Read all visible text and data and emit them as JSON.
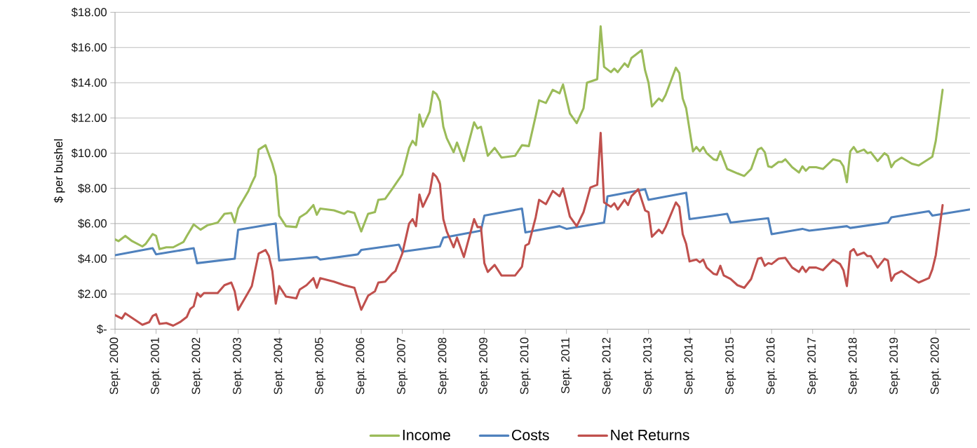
{
  "chart_data": {
    "type": "line",
    "ylabel": "$ per bushel",
    "xlim": [
      "2000-09",
      "2021-07"
    ],
    "xticks": [
      {
        "value": "2000-09",
        "label": "Sept. 2000"
      },
      {
        "value": "2001-09",
        "label": "Sept. 2001"
      },
      {
        "value": "2002-09",
        "label": "Sept. 2002"
      },
      {
        "value": "2003-09",
        "label": "Sept. 2003"
      },
      {
        "value": "2004-09",
        "label": "Sept. 2004"
      },
      {
        "value": "2005-09",
        "label": "Sept. 2005"
      },
      {
        "value": "2006-09",
        "label": "Sept. 2006"
      },
      {
        "value": "2007-09",
        "label": "Sept. 2007"
      },
      {
        "value": "2008-09",
        "label": "Sept. 2008"
      },
      {
        "value": "2009-09",
        "label": "Sept. 2009"
      },
      {
        "value": "2010-09",
        "label": "Sept. 2010"
      },
      {
        "value": "2011-09",
        "label": "Sept. 2011"
      },
      {
        "value": "2012-09",
        "label": "Sept. 2012"
      },
      {
        "value": "2013-09",
        "label": "Sept. 2013"
      },
      {
        "value": "2014-09",
        "label": "Sept. 2014"
      },
      {
        "value": "2015-09",
        "label": "Sept. 2015"
      },
      {
        "value": "2016-09",
        "label": "Sept. 2016"
      },
      {
        "value": "2017-09",
        "label": "Sept. 2017"
      },
      {
        "value": "2018-09",
        "label": "Sept. 2018"
      },
      {
        "value": "2019-09",
        "label": "Sept. 2019"
      },
      {
        "value": "2020-09",
        "label": "Sept. 2020"
      }
    ],
    "ylim": [
      0,
      18
    ],
    "yticks": [
      {
        "value": 0,
        "label": "$-"
      },
      {
        "value": 2,
        "label": "$2.00"
      },
      {
        "value": 4,
        "label": "$4.00"
      },
      {
        "value": 6,
        "label": "$6.00"
      },
      {
        "value": 8,
        "label": "$8.00"
      },
      {
        "value": 10,
        "label": "$10.00"
      },
      {
        "value": 12,
        "label": "$12.00"
      },
      {
        "value": 14,
        "label": "$14.00"
      },
      {
        "value": 16,
        "label": "$16.00"
      },
      {
        "value": 18,
        "label": "$18.00"
      }
    ],
    "grid": "y",
    "legend": "bottom",
    "marker": "none",
    "line_style": "solid",
    "series": [
      {
        "name": "Income",
        "color": "#9bbb59",
        "x": [
          "2000-09",
          "2000-10",
          "2000-12",
          "2001-02",
          "2001-05",
          "2001-06",
          "2001-08",
          "2001-09",
          "2001-10",
          "2001-12",
          "2002-02",
          "2002-05",
          "2002-06",
          "2002-08",
          "2002-10",
          "2002-12",
          "2003-03",
          "2003-05",
          "2003-07",
          "2003-08",
          "2003-09",
          "2003-12",
          "2004-01",
          "2004-02",
          "2004-03",
          "2004-05",
          "2004-07",
          "2004-08",
          "2004-09",
          "2004-11",
          "2005-02",
          "2005-03",
          "2005-05",
          "2005-07",
          "2005-08",
          "2005-09",
          "2006-01",
          "2006-04",
          "2006-05",
          "2006-07",
          "2006-09",
          "2006-11",
          "2007-01",
          "2007-02",
          "2007-04",
          "2007-06",
          "2007-09",
          "2007-11",
          "2007-12",
          "2008-01",
          "2008-02",
          "2008-03",
          "2008-05",
          "2008-06",
          "2008-07",
          "2008-08",
          "2008-09",
          "2008-10",
          "2008-12",
          "2009-01",
          "2009-03",
          "2009-06",
          "2009-07",
          "2009-08",
          "2009-10",
          "2009-12",
          "2010-02",
          "2010-06",
          "2010-08",
          "2010-10",
          "2010-12",
          "2011-01",
          "2011-03",
          "2011-05",
          "2011-07",
          "2011-08",
          "2011-10",
          "2011-12",
          "2012-02",
          "2012-03",
          "2012-06",
          "2012-07",
          "2012-08",
          "2012-10",
          "2012-11",
          "2012-12",
          "2013-02",
          "2013-03",
          "2013-04",
          "2013-07",
          "2013-08",
          "2013-09",
          "2013-10",
          "2013-12",
          "2014-01",
          "2014-02",
          "2014-05",
          "2014-06",
          "2014-07",
          "2014-08",
          "2014-10",
          "2014-11",
          "2014-12",
          "2015-01",
          "2015-02",
          "2015-04",
          "2015-05",
          "2015-06",
          "2015-08",
          "2015-11",
          "2016-01",
          "2016-03",
          "2016-05",
          "2016-06",
          "2016-07",
          "2016-08",
          "2016-09",
          "2016-11",
          "2016-12",
          "2017-01",
          "2017-03",
          "2017-05",
          "2017-06",
          "2017-07",
          "2017-08",
          "2017-10",
          "2017-12",
          "2018-03",
          "2018-05",
          "2018-06",
          "2018-07",
          "2018-08",
          "2018-09",
          "2018-10",
          "2018-12",
          "2019-01",
          "2019-02",
          "2019-04",
          "2019-06",
          "2019-07",
          "2019-08",
          "2019-09",
          "2019-11",
          "2020-02",
          "2020-04",
          "2020-06",
          "2020-08",
          "2020-09",
          "2020-11"
        ],
        "values": [
          5.1,
          5.0,
          5.3,
          5.0,
          4.7,
          4.85,
          5.4,
          5.3,
          4.55,
          4.65,
          4.65,
          4.95,
          5.3,
          5.95,
          5.65,
          5.9,
          6.05,
          6.55,
          6.6,
          6.05,
          6.85,
          7.85,
          8.3,
          8.7,
          10.2,
          10.45,
          9.4,
          8.7,
          6.45,
          5.85,
          5.8,
          6.35,
          6.6,
          7.05,
          6.5,
          6.85,
          6.75,
          6.55,
          6.7,
          6.6,
          5.55,
          6.55,
          6.65,
          7.35,
          7.4,
          7.95,
          8.8,
          10.3,
          10.7,
          10.45,
          12.2,
          11.5,
          12.35,
          13.5,
          13.35,
          12.95,
          11.5,
          10.85,
          10.05,
          10.6,
          9.55,
          11.75,
          11.4,
          11.5,
          9.85,
          10.3,
          9.75,
          9.85,
          10.45,
          10.4,
          12.1,
          13.0,
          12.85,
          13.6,
          13.4,
          13.9,
          12.25,
          11.7,
          12.55,
          14.0,
          14.2,
          17.2,
          14.9,
          14.6,
          14.8,
          14.6,
          15.1,
          14.9,
          15.4,
          15.85,
          14.7,
          14.0,
          12.65,
          13.1,
          12.95,
          13.3,
          14.85,
          14.55,
          13.1,
          12.55,
          10.1,
          10.35,
          10.1,
          10.35,
          10.0,
          9.65,
          9.6,
          10.1,
          9.1,
          8.85,
          8.7,
          9.1,
          10.2,
          10.3,
          10.05,
          9.25,
          9.2,
          9.5,
          9.5,
          9.65,
          9.2,
          8.9,
          9.25,
          9.0,
          9.2,
          9.2,
          9.1,
          9.65,
          9.55,
          9.25,
          8.35,
          10.1,
          10.35,
          10.05,
          10.2,
          10.0,
          10.05,
          9.55,
          10.0,
          9.85,
          9.2,
          9.5,
          9.75,
          9.4,
          9.3,
          9.55,
          9.8,
          10.7,
          13.6
        ]
      },
      {
        "name": "Costs",
        "color": "#4f81bd",
        "x": [
          "2000-09",
          "2001-08",
          "2001-09",
          "2002-08",
          "2002-09",
          "2003-08",
          "2003-09",
          "2004-08",
          "2004-09",
          "2005-08",
          "2005-09",
          "2006-08",
          "2006-09",
          "2007-08",
          "2007-09",
          "2008-08",
          "2008-09",
          "2009-08",
          "2009-09",
          "2010-08",
          "2010-09",
          "2011-07",
          "2011-09",
          "2012-08",
          "2012-09",
          "2013-08",
          "2013-09",
          "2014-08",
          "2014-09",
          "2015-08",
          "2015-09",
          "2016-08",
          "2016-09",
          "2017-06",
          "2017-08",
          "2018-07",
          "2018-08",
          "2019-07",
          "2019-08",
          "2020-07",
          "2020-08",
          "2021-07"
        ],
        "values": [
          4.2,
          4.6,
          4.25,
          4.6,
          3.75,
          4.0,
          5.65,
          6.0,
          3.9,
          4.1,
          3.95,
          4.25,
          4.5,
          4.8,
          4.4,
          4.7,
          5.2,
          5.6,
          6.45,
          6.85,
          5.5,
          5.85,
          5.7,
          6.05,
          7.55,
          7.95,
          7.35,
          7.75,
          6.25,
          6.55,
          6.05,
          6.3,
          5.4,
          5.7,
          5.6,
          5.85,
          5.75,
          6.05,
          6.35,
          6.7,
          6.45,
          6.8
        ]
      },
      {
        "name": "Net Returns",
        "color": "#c0504d",
        "x": [
          "2000-09",
          "2000-11",
          "2000-12",
          "2001-05",
          "2001-07",
          "2001-08",
          "2001-09",
          "2001-10",
          "2001-12",
          "2002-02",
          "2002-04",
          "2002-06",
          "2002-07",
          "2002-08",
          "2002-09",
          "2002-10",
          "2002-11",
          "2003-03",
          "2003-05",
          "2003-07",
          "2003-08",
          "2003-09",
          "2003-12",
          "2004-01",
          "2004-03",
          "2004-05",
          "2004-06",
          "2004-07",
          "2004-08",
          "2004-09",
          "2004-11",
          "2005-02",
          "2005-03",
          "2005-05",
          "2005-07",
          "2005-08",
          "2005-09",
          "2006-01",
          "2006-04",
          "2006-07",
          "2006-09",
          "2006-11",
          "2007-01",
          "2007-02",
          "2007-04",
          "2007-06",
          "2007-07",
          "2007-09",
          "2007-11",
          "2007-12",
          "2008-01",
          "2008-02",
          "2008-03",
          "2008-05",
          "2008-06",
          "2008-07",
          "2008-08",
          "2008-09",
          "2008-10",
          "2008-12",
          "2009-01",
          "2009-03",
          "2009-06",
          "2009-07",
          "2009-08",
          "2009-09",
          "2009-10",
          "2009-12",
          "2010-02",
          "2010-06",
          "2010-08",
          "2010-09",
          "2010-10",
          "2010-12",
          "2011-01",
          "2011-03",
          "2011-05",
          "2011-07",
          "2011-08",
          "2011-10",
          "2011-12",
          "2012-02",
          "2012-04",
          "2012-06",
          "2012-07",
          "2012-08",
          "2012-10",
          "2012-11",
          "2012-12",
          "2013-02",
          "2013-03",
          "2013-04",
          "2013-06",
          "2013-08",
          "2013-09",
          "2013-10",
          "2013-12",
          "2014-01",
          "2014-02",
          "2014-05",
          "2014-06",
          "2014-07",
          "2014-08",
          "2014-09",
          "2014-11",
          "2014-12",
          "2015-01",
          "2015-02",
          "2015-04",
          "2015-05",
          "2015-06",
          "2015-07",
          "2015-09",
          "2015-11",
          "2016-01",
          "2016-03",
          "2016-05",
          "2016-06",
          "2016-07",
          "2016-08",
          "2016-09",
          "2016-11",
          "2017-01",
          "2017-03",
          "2017-05",
          "2017-06",
          "2017-07",
          "2017-08",
          "2017-10",
          "2017-12",
          "2018-03",
          "2018-05",
          "2018-06",
          "2018-07",
          "2018-08",
          "2018-09",
          "2018-10",
          "2018-12",
          "2019-01",
          "2019-02",
          "2019-04",
          "2019-06",
          "2019-07",
          "2019-08",
          "2019-09",
          "2019-11",
          "2020-02",
          "2020-04",
          "2020-07",
          "2020-08",
          "2020-09",
          "2020-11"
        ],
        "values": [
          0.8,
          0.6,
          0.9,
          0.25,
          0.4,
          0.75,
          0.85,
          0.3,
          0.35,
          0.2,
          0.4,
          0.7,
          1.15,
          1.3,
          2.05,
          1.85,
          2.05,
          2.05,
          2.5,
          2.65,
          2.15,
          1.1,
          2.1,
          2.45,
          4.3,
          4.5,
          4.15,
          3.3,
          1.45,
          2.45,
          1.85,
          1.75,
          2.25,
          2.5,
          2.9,
          2.35,
          2.9,
          2.7,
          2.5,
          2.35,
          1.1,
          1.9,
          2.15,
          2.65,
          2.7,
          3.15,
          3.3,
          4.3,
          6.0,
          6.25,
          5.85,
          7.65,
          6.95,
          7.75,
          8.85,
          8.65,
          8.25,
          6.25,
          5.55,
          4.65,
          5.2,
          4.1,
          6.25,
          5.8,
          5.8,
          3.75,
          3.25,
          3.65,
          3.05,
          3.05,
          3.55,
          4.75,
          4.85,
          6.35,
          7.35,
          7.1,
          7.85,
          7.55,
          8.0,
          6.4,
          5.85,
          6.65,
          8.05,
          8.2,
          11.15,
          7.2,
          6.95,
          7.15,
          6.8,
          7.35,
          7.05,
          7.55,
          7.95,
          6.75,
          6.65,
          5.25,
          5.65,
          5.45,
          5.8,
          7.2,
          6.95,
          5.4,
          4.85,
          3.85,
          3.95,
          3.8,
          3.95,
          3.5,
          3.15,
          3.1,
          3.6,
          3.05,
          2.85,
          2.5,
          2.35,
          2.85,
          4.0,
          4.05,
          3.6,
          3.75,
          3.7,
          4.0,
          4.05,
          3.5,
          3.25,
          3.55,
          3.25,
          3.5,
          3.5,
          3.35,
          3.95,
          3.7,
          3.35,
          2.45,
          4.4,
          4.55,
          4.2,
          4.35,
          4.15,
          4.15,
          3.5,
          4.0,
          3.9,
          2.75,
          3.1,
          3.3,
          2.9,
          2.65,
          2.9,
          3.4,
          4.2,
          7.05
        ]
      }
    ]
  }
}
